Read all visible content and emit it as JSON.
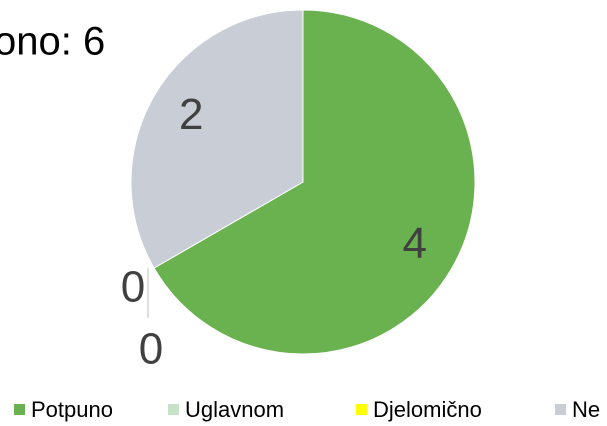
{
  "chart_data": {
    "type": "pie",
    "title": "ono: 6",
    "categories": [
      "Potpuno",
      "Uglavnom",
      "Djelomično",
      "Ne"
    ],
    "values": [
      4,
      0,
      0,
      2
    ],
    "colors": [
      "#6ab150",
      "#c6e3c9",
      "#ffff00",
      "#c9cdd5"
    ],
    "legend": "bottom"
  }
}
